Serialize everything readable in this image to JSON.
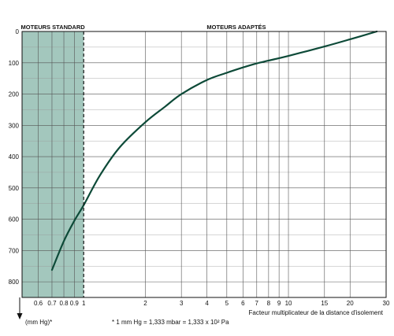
{
  "chart_data": {
    "type": "line",
    "x_scale": "log",
    "y_inverted": true,
    "xlim": [
      0.5,
      30
    ],
    "ylim": [
      0,
      850
    ],
    "x_ticks": [
      0.6,
      0.7,
      0.8,
      0.9,
      1,
      2,
      3,
      4,
      5,
      6,
      7,
      8,
      9,
      10,
      15,
      20,
      30
    ],
    "x_tick_labels": [
      "0.6",
      "0.7",
      "0.8",
      "0.9",
      "1",
      "2",
      "3",
      "4",
      "5",
      "6",
      "7",
      "8",
      "9",
      "10",
      "15",
      "20",
      "30"
    ],
    "y_ticks": [
      0,
      100,
      200,
      300,
      400,
      500,
      600,
      700,
      800
    ],
    "y_tick_labels": [
      "0",
      "100",
      "200",
      "300",
      "400",
      "500",
      "600",
      "700",
      "800"
    ],
    "y_minor_step": 50,
    "xlabel": "Facteur multiplicateur de la distance d'isolement",
    "ylabel": "(mm Hg)*",
    "footnote": "* 1 mm Hg = 1,333 mbar = 1,333 x 10² Pa",
    "regions": [
      {
        "label": "MOTEURS STANDARD",
        "x_from": 0.5,
        "x_to": 1.0,
        "color": "#a3c7bd"
      },
      {
        "label": "MOTEURS ADAPTÉS",
        "x_from": 1.0,
        "x_to": 30
      }
    ],
    "boundary_x": 1.0,
    "curve_color": "#0d4a38",
    "series": [
      {
        "x": [
          0.7,
          0.8,
          0.9,
          1.0,
          1.2,
          1.5,
          2.0,
          2.5,
          3.0,
          4.0,
          5.0,
          6.0,
          7.0,
          8.0,
          10.0,
          15.0,
          20.0,
          27.0
        ],
        "y": [
          762,
          670,
          605,
          555,
          460,
          370,
          290,
          240,
          200,
          155,
          132,
          115,
          102,
          93,
          78,
          48,
          25,
          0
        ]
      }
    ]
  }
}
